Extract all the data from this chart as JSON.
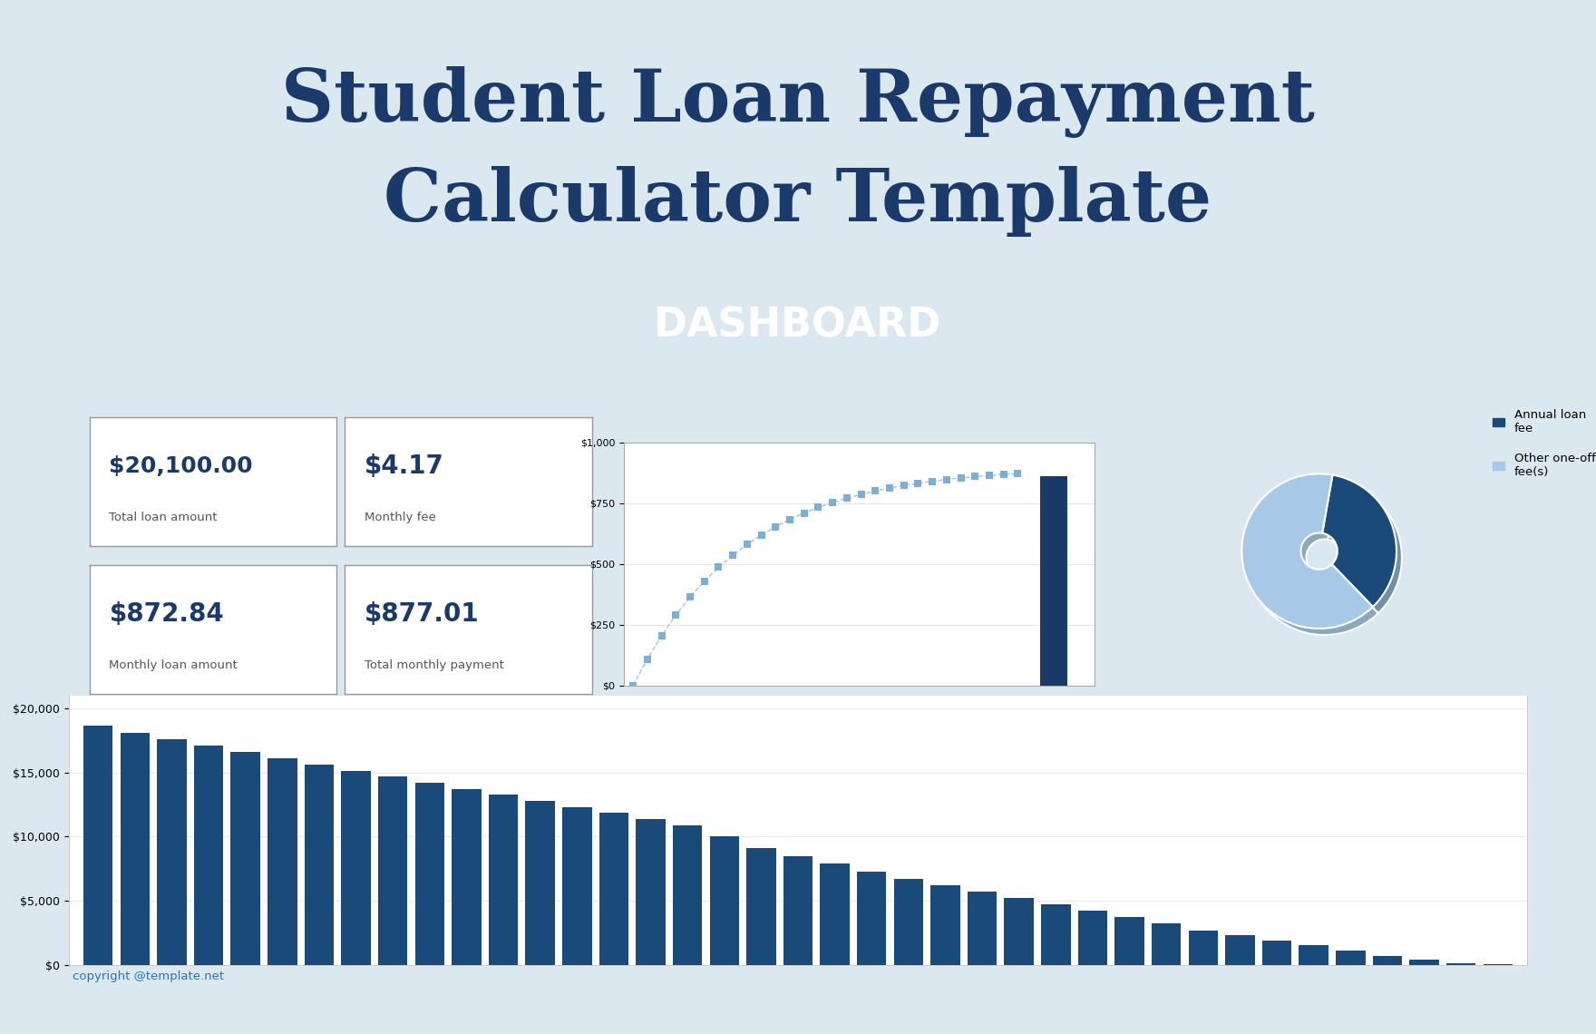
{
  "title_line1": "Student Loan Repayment",
  "title_line2": "Calculator Template",
  "title_color": "#1a3a6b",
  "bg_color": "#dce8f0",
  "dashboard_bg": "#1a4a7a",
  "dashboard_text": "DASHBOARD",
  "dashboard_sub_bg": "#c5d8ea",
  "metrics": [
    {
      "value": "$20,100.00",
      "label": "Total loan amount"
    },
    {
      "value": "$4.17",
      "label": "Monthly fee"
    },
    {
      "value": "$872.84",
      "label": "Monthly loan amount"
    },
    {
      "value": "$877.01",
      "label": "Total monthly payment"
    }
  ],
  "bar_values": [
    18700,
    18100,
    17600,
    17100,
    16600,
    16100,
    15600,
    15100,
    14700,
    14200,
    13700,
    13300,
    12800,
    12300,
    11900,
    11400,
    10900,
    10000,
    9100,
    8500,
    7900,
    7300,
    6700,
    6200,
    5700,
    5200,
    4700,
    4200,
    3700,
    3200,
    2700,
    2300,
    1900,
    1500,
    1100,
    700,
    400,
    150,
    50
  ],
  "bar_color": "#1a4a7a",
  "bar_yticks": [
    0,
    5000,
    10000,
    15000,
    20000
  ],
  "bar_ytick_labels": [
    "$0",
    "$5,000",
    "$10,000",
    "$15,000",
    "$20,000"
  ],
  "waterfall_ytick_labels": [
    "$0",
    "$250",
    "$500",
    "$750",
    "$1,000"
  ],
  "pie_colors": [
    "#1a4a7a",
    "#a8c8e8"
  ],
  "pie_shadow_color": "#7a9ab8",
  "pie_labels": [
    "Annual loan\nfee",
    "Other one-off\nfee(s)"
  ],
  "pie_values": [
    0.35,
    0.65
  ],
  "copyright": "copyright @template.net",
  "copyright_color": "#2277bb"
}
